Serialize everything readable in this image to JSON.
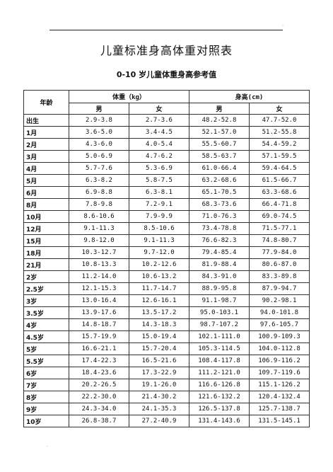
{
  "document": {
    "title": "儿童标准身高体重对照表",
    "subtitle": "0-10 岁儿童体重身高参考值"
  },
  "table": {
    "headers": {
      "age": "年龄",
      "weight": "体重（kg）",
      "height": "身高(cm)",
      "male": "男",
      "female": "女"
    },
    "rows": [
      {
        "age": "出生",
        "w_m": "2.9-3.8",
        "w_f": "2.7-3.6",
        "h_m": "48.2-52.8",
        "h_f": "47.7-52.0"
      },
      {
        "age": "1月",
        "w_m": "3.6-5.0",
        "w_f": "3.4-4.5",
        "h_m": "52.1-57.0",
        "h_f": "51.2-55.8"
      },
      {
        "age": "2月",
        "w_m": "4.3-6.0",
        "w_f": "4.0-5.4",
        "h_m": "55.5-60.7",
        "h_f": "54.4-59.2"
      },
      {
        "age": "3月",
        "w_m": "5.0-6.9",
        "w_f": "4.7-6.2",
        "h_m": "58.5-63.7",
        "h_f": "57.1-59.5"
      },
      {
        "age": "4月",
        "w_m": "5.7-7.6",
        "w_f": "5.3-6.9",
        "h_m": "61.0-66.4",
        "h_f": "59.4-64.5"
      },
      {
        "age": "5月",
        "w_m": "6.3-8.2",
        "w_f": "5.8-7.5",
        "h_m": "63.2-68.6",
        "h_f": "61.5-66.7"
      },
      {
        "age": "6月",
        "w_m": "6.9-8.8",
        "w_f": "6.3-8.1",
        "h_m": "65.1-70.5",
        "h_f": "63.3-68.6"
      },
      {
        "age": "8月",
        "w_m": "7.8-9.8",
        "w_f": "7.2-9.1",
        "h_m": "68.3-73.6",
        "h_f": "66.4-71.8"
      },
      {
        "age": "10月",
        "w_m": "8.6-10.6",
        "w_f": "7.9-9.9",
        "h_m": "71.0-76.3",
        "h_f": "69.0-74.5"
      },
      {
        "age": "12月",
        "w_m": "9.1-11.3",
        "w_f": "8.5-10.6",
        "h_m": "73.4-78.8",
        "h_f": "71.5-77.1"
      },
      {
        "age": "15月",
        "w_m": "9.8-12.0",
        "w_f": "9.1-11.3",
        "h_m": "76.6-82.3",
        "h_f": "74.8-80.7"
      },
      {
        "age": "18月",
        "w_m": "10.3-12.7",
        "w_f": "9.7-12.0",
        "h_m": "79.4-85.4",
        "h_f": "77.9-84.0"
      },
      {
        "age": "21月",
        "w_m": "10.8-13.3",
        "w_f": "10.2-12.6",
        "h_m": "81.9-88.4",
        "h_f": "80.6-87.0"
      },
      {
        "age": "2岁",
        "w_m": "11.2-14.0",
        "w_f": "10.6-13.2",
        "h_m": "84.3-91.0",
        "h_f": "83.3-89.8"
      },
      {
        "age": "2.5岁",
        "w_m": "12.1-15.3",
        "w_f": "11.7-14.7",
        "h_m": "88.9-95.8",
        "h_f": "87.9-94.7"
      },
      {
        "age": "3岁",
        "w_m": "13.0-16.4",
        "w_f": "12.6-16.1",
        "h_m": "91.1-98.7",
        "h_f": "90.2-98.1"
      },
      {
        "age": "3.5岁",
        "w_m": "13.9-17.6",
        "w_f": "13.5-17.2",
        "h_m": "95.0-103.1",
        "h_f": "94.0-101.8"
      },
      {
        "age": "4岁",
        "w_m": "14.8-18.7",
        "w_f": "14.3-18.3",
        "h_m": "98.7-107.2",
        "h_f": "97.6-105.7"
      },
      {
        "age": "4.5岁",
        "w_m": "15.7-19.9",
        "w_f": "15.0-19.4",
        "h_m": "102.1-111.0",
        "h_f": "100.9-109.3"
      },
      {
        "age": "5岁",
        "w_m": "16.6-21.1",
        "w_f": "15.7-20.4",
        "h_m": "105.3-114.5",
        "h_f": "104.0-112.8"
      },
      {
        "age": "5.5岁",
        "w_m": "17.4-22.3",
        "w_f": "16.5-21.6",
        "h_m": "108.4-117.8",
        "h_f": "106.9-116.2"
      },
      {
        "age": "6岁",
        "w_m": "18.4-23.6",
        "w_f": "17.3-22.9",
        "h_m": "111.2-121.0",
        "h_f": "109.7-119.6"
      },
      {
        "age": "7岁",
        "w_m": "20.2-26.5",
        "w_f": "19.1-26.0",
        "h_m": "116.6-126.8",
        "h_f": "115.1-126.2"
      },
      {
        "age": "8岁",
        "w_m": "22.2-30.0",
        "w_f": "21.4-30.2",
        "h_m": "121.6-132.2",
        "h_f": "120.4-132.4"
      },
      {
        "age": "9岁",
        "w_m": "24.3-34.0",
        "w_f": "24.1-35.3",
        "h_m": "126.5-137.8",
        "h_f": "125.7-138.7"
      },
      {
        "age": "10岁",
        "w_m": "26.8-38.7",
        "w_f": "27.2-40.9",
        "h_m": "131.4-143.6",
        "h_f": "131.5-145.1"
      }
    ]
  }
}
